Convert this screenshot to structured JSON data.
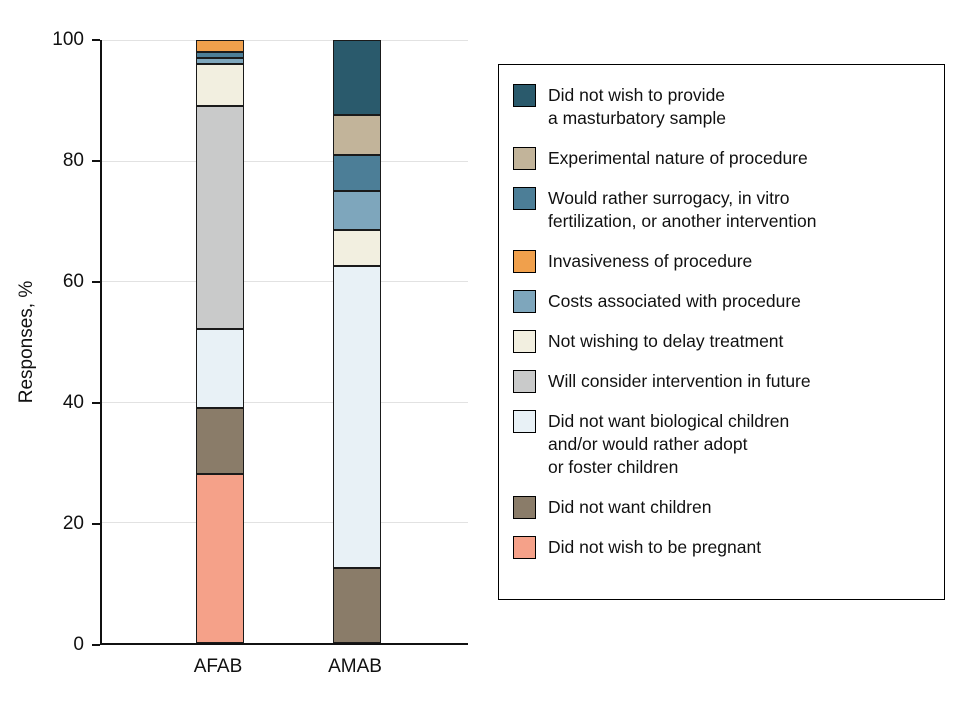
{
  "chart_data": {
    "type": "bar",
    "stacked": true,
    "title": "",
    "xlabel": "",
    "ylabel": "Responses, %",
    "ylim": [
      0,
      100
    ],
    "yticks": [
      0,
      20,
      40,
      60,
      80,
      100
    ],
    "grid": true,
    "legend_position": "right",
    "categories": [
      "AFAB",
      "AMAB"
    ],
    "series": [
      {
        "name": "Did not wish to be pregnant",
        "color": "#F5A189",
        "values": [
          28,
          0
        ]
      },
      {
        "name": "Did not want children",
        "color": "#8A7C69",
        "values": [
          11,
          12.5
        ]
      },
      {
        "name": "Did not want biological children and/or would rather adopt or foster children",
        "color": "#E8F1F6",
        "values": [
          13,
          50
        ]
      },
      {
        "name": "Will consider intervention in future",
        "color": "#C9CACA",
        "values": [
          37,
          0
        ]
      },
      {
        "name": "Not wishing to delay treatment",
        "color": "#F2EFE0",
        "values": [
          7,
          6
        ]
      },
      {
        "name": "Costs associated with procedure",
        "color": "#7EA6BC",
        "values": [
          1,
          6.5
        ]
      },
      {
        "name": "Would rather surrogacy, in vitro fertilization, or another intervention",
        "color": "#4C7E97",
        "values": [
          1,
          6
        ]
      },
      {
        "name": "Invasiveness of procedure",
        "color": "#F0A04C",
        "values": [
          2,
          0
        ]
      },
      {
        "name": "Experimental nature of procedure",
        "color": "#C2B49A",
        "values": [
          0,
          6.5
        ]
      },
      {
        "name": "Did not wish to provide a masturbatory sample",
        "color": "#2A5A6C",
        "values": [
          0,
          12.5
        ]
      }
    ]
  },
  "legend": {
    "items": [
      {
        "label": "Did not wish to provide\na masturbatory sample",
        "color": "#2A5A6C"
      },
      {
        "label": "Experimental nature of procedure",
        "color": "#C2B49A"
      },
      {
        "label": "Would rather surrogacy, in vitro\nfertilization, or another intervention",
        "color": "#4C7E97"
      },
      {
        "label": "Invasiveness of procedure",
        "color": "#F0A04C"
      },
      {
        "label": "Costs associated with procedure",
        "color": "#7EA6BC"
      },
      {
        "label": "Not wishing to delay treatment",
        "color": "#F2EFE0"
      },
      {
        "label": "Will consider intervention in future",
        "color": "#C9CACA"
      },
      {
        "label": "Did not want biological children\nand/or would rather adopt\nor foster children",
        "color": "#E8F1F6"
      },
      {
        "label": "Did not want children",
        "color": "#8A7C69"
      },
      {
        "label": "Did not wish to be pregnant",
        "color": "#F5A189"
      }
    ]
  }
}
